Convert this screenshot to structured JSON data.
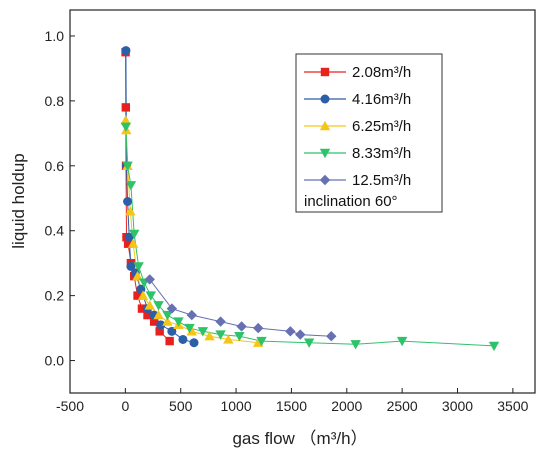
{
  "chart_data": {
    "type": "line",
    "xlabel": "gas flow",
    "xlabel_unit": "（m³/h）",
    "ylabel": "liquid holdup",
    "xlim": [
      -500,
      3700
    ],
    "ylim": [
      -0.1,
      1.08
    ],
    "x_ticks": [
      "-500",
      "0",
      "500",
      "1000",
      "1500",
      "2000",
      "2500",
      "3000",
      "3500"
    ],
    "y_ticks": [
      "0.0",
      "0.2",
      "0.4",
      "0.6",
      "0.8",
      "1.0"
    ],
    "grid": false,
    "legend_position": "top-right",
    "legend_note": "inclination  60°",
    "series": [
      {
        "name": "2.08m³/h",
        "color": "#e8211d",
        "marker": "square",
        "points": [
          [
            2,
            0.95
          ],
          [
            4,
            0.78
          ],
          [
            6,
            0.6
          ],
          [
            10,
            0.38
          ],
          [
            25,
            0.36
          ],
          [
            50,
            0.3
          ],
          [
            80,
            0.26
          ],
          [
            110,
            0.2
          ],
          [
            150,
            0.16
          ],
          [
            200,
            0.14
          ],
          [
            260,
            0.12
          ],
          [
            310,
            0.09
          ],
          [
            400,
            0.06
          ]
        ]
      },
      {
        "name": "4.16m³/h",
        "color": "#2b5fa8",
        "marker": "circle",
        "points": [
          [
            5,
            0.955
          ],
          [
            10,
            0.6
          ],
          [
            20,
            0.49
          ],
          [
            35,
            0.38
          ],
          [
            50,
            0.29
          ],
          [
            90,
            0.27
          ],
          [
            140,
            0.22
          ],
          [
            200,
            0.16
          ],
          [
            260,
            0.14
          ],
          [
            320,
            0.11
          ],
          [
            420,
            0.09
          ],
          [
            520,
            0.065
          ],
          [
            620,
            0.055
          ]
        ]
      },
      {
        "name": "6.25m³/h",
        "color": "#f5c518",
        "marker": "triangle-up",
        "points": [
          [
            3,
            0.74
          ],
          [
            8,
            0.71
          ],
          [
            20,
            0.6
          ],
          [
            45,
            0.46
          ],
          [
            70,
            0.36
          ],
          [
            110,
            0.26
          ],
          [
            160,
            0.2
          ],
          [
            220,
            0.17
          ],
          [
            300,
            0.14
          ],
          [
            380,
            0.12
          ],
          [
            480,
            0.11
          ],
          [
            600,
            0.09
          ],
          [
            760,
            0.075
          ],
          [
            930,
            0.065
          ],
          [
            1200,
            0.055
          ]
        ]
      },
      {
        "name": "8.33m³/h",
        "color": "#2ec26a",
        "marker": "triangle-down",
        "points": [
          [
            5,
            0.72
          ],
          [
            20,
            0.6
          ],
          [
            50,
            0.54
          ],
          [
            80,
            0.39
          ],
          [
            120,
            0.29
          ],
          [
            170,
            0.24
          ],
          [
            230,
            0.2
          ],
          [
            300,
            0.17
          ],
          [
            380,
            0.14
          ],
          [
            480,
            0.12
          ],
          [
            580,
            0.1
          ],
          [
            700,
            0.09
          ],
          [
            860,
            0.08
          ],
          [
            1030,
            0.075
          ],
          [
            1230,
            0.06
          ],
          [
            1660,
            0.055
          ],
          [
            2080,
            0.05
          ],
          [
            2500,
            0.06
          ],
          [
            3330,
            0.045
          ]
        ]
      },
      {
        "name": "12.5m³/h",
        "color": "#6670b2",
        "marker": "diamond",
        "points": [
          [
            220,
            0.25
          ],
          [
            420,
            0.16
          ],
          [
            600,
            0.14
          ],
          [
            860,
            0.12
          ],
          [
            1050,
            0.105
          ],
          [
            1200,
            0.1
          ],
          [
            1490,
            0.09
          ],
          [
            1580,
            0.08
          ],
          [
            1860,
            0.075
          ]
        ]
      }
    ]
  }
}
